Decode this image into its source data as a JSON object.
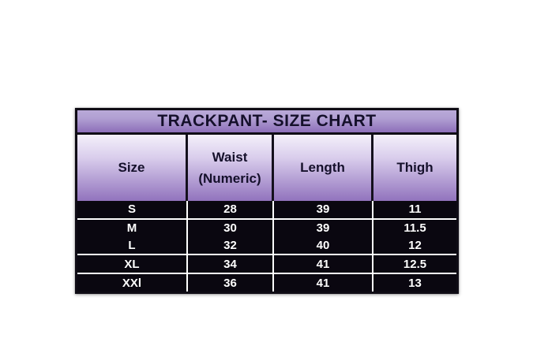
{
  "chart_data": {
    "type": "table",
    "title": "TRACKPANT- SIZE CHART",
    "columns": [
      "Size",
      "Waist (Numeric)",
      "Length",
      "Thigh"
    ],
    "rows": [
      [
        "S",
        "28",
        "39",
        "11"
      ],
      [
        "M",
        "30",
        "39",
        "11.5"
      ],
      [
        "L",
        "32",
        "40",
        "12"
      ],
      [
        "XL",
        "34",
        "41",
        "12.5"
      ],
      [
        "XXl",
        "36",
        "41",
        "13"
      ]
    ],
    "layout": {
      "legend_position": "none",
      "grid": "white separators after rows S, L, XL; black cell borders in header"
    }
  },
  "colors": {
    "page_background": "#ffffff",
    "title_gradient_top": "#b9a9d8",
    "title_gradient_bottom": "#8d6fb9",
    "header_gradient_top": "#f4f0fa",
    "header_gradient_bottom": "#9173bd",
    "data_row_background": "#0a0710",
    "data_text": "#ffffff",
    "heading_text": "#15102b",
    "table_border": "#0f0c15"
  }
}
